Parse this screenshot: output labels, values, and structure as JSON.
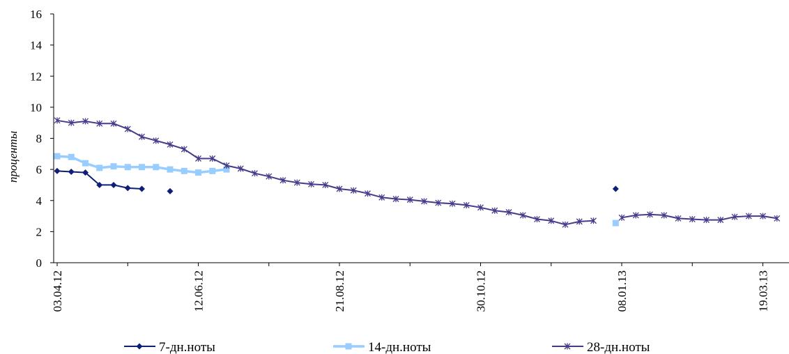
{
  "chart_data": {
    "type": "line",
    "title": "",
    "xlabel": "",
    "ylabel": "проценты",
    "ylim": [
      0,
      16
    ],
    "yticks": [
      "0",
      "2",
      "4",
      "6",
      "8",
      "10",
      "12",
      "14",
      "16"
    ],
    "xticks": [
      "03.04.12",
      "12.06.12",
      "21.08.12",
      "30.10.12",
      "08.01.13",
      "19.03.13"
    ],
    "grid": false,
    "legend_position": "bottom",
    "colors": {
      "7-дн.ноты": "#0f1f78",
      "14-дн.ноты": "#99ccff",
      "28-дн.ноты": "#443c8a"
    },
    "series": [
      {
        "name": "7-дн.ноты",
        "marker": "diamond",
        "points": [
          [
            "03.04.12",
            5.9
          ],
          [
            "10.04.12",
            5.85
          ],
          [
            "17.04.12",
            5.8
          ],
          [
            "24.04.12",
            5.0
          ],
          [
            "01.05.12",
            5.0
          ],
          [
            "08.05.12",
            4.8
          ],
          [
            "15.05.12",
            4.75
          ],
          [
            null,
            null
          ],
          [
            "29.05.12",
            4.6
          ],
          [
            null,
            null
          ],
          [
            "05.01.13",
            4.75
          ]
        ]
      },
      {
        "name": "14-дн.ноты",
        "marker": "square",
        "points": [
          [
            "03.04.12",
            6.85
          ],
          [
            "10.04.12",
            6.8
          ],
          [
            "17.04.12",
            6.4
          ],
          [
            "24.04.12",
            6.1
          ],
          [
            "01.05.12",
            6.2
          ],
          [
            "08.05.12",
            6.15
          ],
          [
            "15.05.12",
            6.15
          ],
          [
            "22.05.12",
            6.15
          ],
          [
            "29.05.12",
            6.0
          ],
          [
            "05.06.12",
            5.9
          ],
          [
            "12.06.12",
            5.8
          ],
          [
            "19.06.12",
            5.9
          ],
          [
            "26.06.12",
            6.0
          ],
          [
            null,
            null
          ],
          [
            "05.01.13",
            2.55
          ]
        ]
      },
      {
        "name": "28-дн.ноты",
        "marker": "star",
        "points": [
          [
            "03.04.12",
            9.15
          ],
          [
            "10.04.12",
            9.0
          ],
          [
            "17.04.12",
            9.1
          ],
          [
            "24.04.12",
            8.95
          ],
          [
            "01.05.12",
            8.95
          ],
          [
            "08.05.12",
            8.6
          ],
          [
            "15.05.12",
            8.1
          ],
          [
            "22.05.12",
            7.85
          ],
          [
            "29.05.12",
            7.6
          ],
          [
            "05.06.12",
            7.3
          ],
          [
            "12.06.12",
            6.7
          ],
          [
            "19.06.12",
            6.7
          ],
          [
            "26.06.12",
            6.25
          ],
          [
            "03.07.12",
            6.05
          ],
          [
            "10.07.12",
            5.75
          ],
          [
            "17.07.12",
            5.55
          ],
          [
            "24.07.12",
            5.3
          ],
          [
            "31.07.12",
            5.15
          ],
          [
            "07.08.12",
            5.05
          ],
          [
            "14.08.12",
            5.0
          ],
          [
            "21.08.12",
            4.75
          ],
          [
            "28.08.12",
            4.65
          ],
          [
            "04.09.12",
            4.45
          ],
          [
            "11.09.12",
            4.2
          ],
          [
            "18.09.12",
            4.1
          ],
          [
            "25.09.12",
            4.05
          ],
          [
            "02.10.12",
            3.95
          ],
          [
            "09.10.12",
            3.85
          ],
          [
            "16.10.12",
            3.8
          ],
          [
            "23.10.12",
            3.7
          ],
          [
            "30.10.12",
            3.55
          ],
          [
            "06.11.12",
            3.35
          ],
          [
            "13.11.12",
            3.25
          ],
          [
            "20.11.12",
            3.05
          ],
          [
            "27.11.12",
            2.8
          ],
          [
            "04.12.12",
            2.7
          ],
          [
            "11.12.12",
            2.45
          ],
          [
            "18.12.12",
            2.65
          ],
          [
            "25.12.12",
            2.7
          ],
          [
            null,
            null
          ],
          [
            "08.01.13",
            2.9
          ],
          [
            "15.01.13",
            3.05
          ],
          [
            "22.01.13",
            3.1
          ],
          [
            "29.01.13",
            3.05
          ],
          [
            "05.02.13",
            2.85
          ],
          [
            "12.02.13",
            2.8
          ],
          [
            "19.02.13",
            2.75
          ],
          [
            "26.02.13",
            2.75
          ],
          [
            "05.03.13",
            2.95
          ],
          [
            "12.03.13",
            3.0
          ],
          [
            "19.03.13",
            3.0
          ],
          [
            "26.03.13",
            2.85
          ]
        ]
      }
    ]
  }
}
